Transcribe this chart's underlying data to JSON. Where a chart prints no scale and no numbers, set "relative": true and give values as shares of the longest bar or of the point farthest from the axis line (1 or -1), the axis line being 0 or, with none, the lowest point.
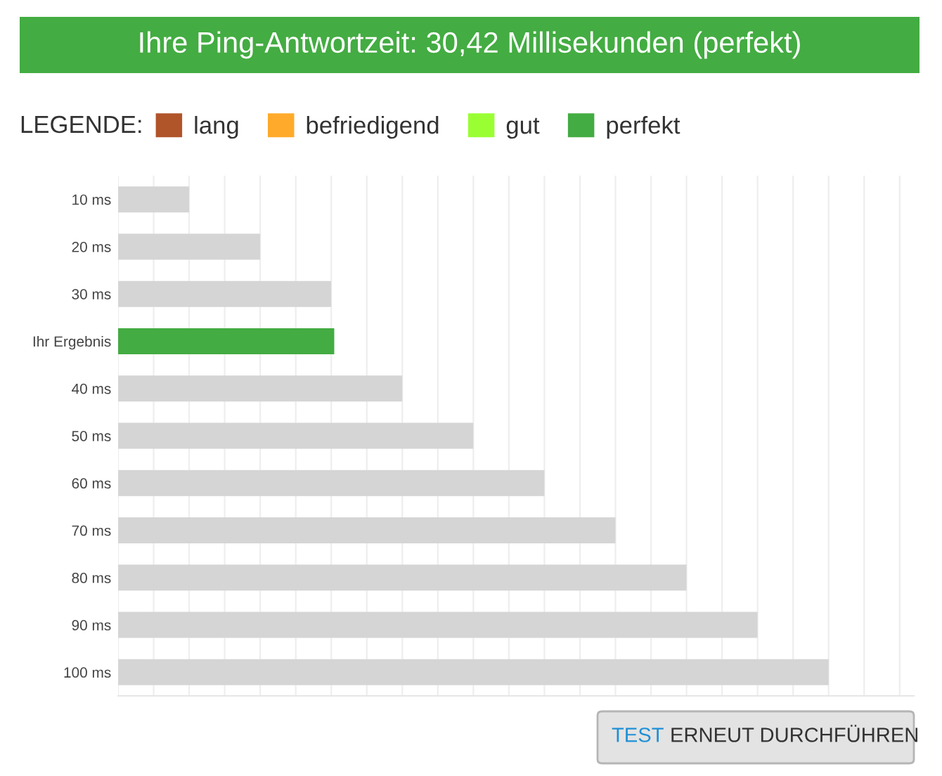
{
  "chart_data": {
    "type": "bar",
    "orientation": "horizontal",
    "relative": true,
    "title": "Ihre Ping-Antwortzeit: 30,42 Millisekunden (perfekt)",
    "legend_title": "LEGENDE:",
    "legend": "top left",
    "grid": "x",
    "categories": [
      "10 ms",
      "20 ms",
      "30 ms",
      "Ihr Ergebnis",
      "40 ms",
      "50 ms",
      "60 ms",
      "70 ms",
      "80 ms",
      "90 ms",
      "100 ms"
    ],
    "series": [
      {
        "color": "#d5d5d5",
        "values": [
          0.1,
          0.2,
          0.3,
          null,
          0.4,
          0.5,
          0.6,
          0.7,
          0.8,
          0.9,
          1.0
        ]
      },
      {
        "name": "lang",
        "color": "#b0542a",
        "values": [
          null,
          null,
          null,
          null,
          null,
          null,
          null,
          null,
          null,
          null,
          null
        ]
      },
      {
        "name": "befriedigend",
        "color": "#ffaa2a",
        "values": [
          null,
          null,
          null,
          null,
          null,
          null,
          null,
          null,
          null,
          null,
          null
        ]
      },
      {
        "name": "gut",
        "color": "#99ff33",
        "values": [
          null,
          null,
          null,
          null,
          null,
          null,
          null,
          null,
          null,
          null,
          null
        ]
      },
      {
        "name": "perfekt",
        "color": "#43ac42",
        "values": [
          null,
          null,
          null,
          0.3042,
          null,
          null,
          null,
          null,
          null,
          null,
          null
        ]
      }
    ],
    "annotations": [
      "TEST",
      "ERNEUT DURCHFÜHREN"
    ]
  }
}
